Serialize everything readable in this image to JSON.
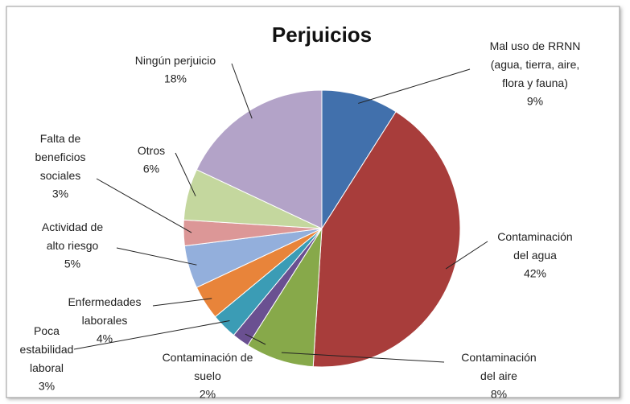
{
  "chart_data": {
    "type": "pie",
    "title": "Perjuicios",
    "categories": [
      "Mal uso de RRNN\n(agua, tierra, aire,\nflora y fauna)",
      "Contaminación\ndel agua",
      "Contaminación\ndel aire",
      "Contaminación de\nsuelo",
      "Poca\nestabilidad\nlaboral",
      "Enfermedades\nlaborales",
      "Actividad de\nalto riesgo",
      "Falta de\nbeneficios\nsociales",
      "Otros",
      "Ningún perjuicio"
    ],
    "values": [
      9,
      42,
      8,
      2,
      3,
      4,
      5,
      3,
      6,
      18
    ],
    "value_labels": [
      "9%",
      "42%",
      "8%",
      "2%",
      "3%",
      "4%",
      "5%",
      "3%",
      "6%",
      "18%"
    ],
    "colors": [
      "#4170ac",
      "#a83d3b",
      "#87a94a",
      "#6a5091",
      "#3b9cb5",
      "#e8843a",
      "#93afdc",
      "#dc9797",
      "#c4d79e",
      "#b3a3c8"
    ]
  }
}
